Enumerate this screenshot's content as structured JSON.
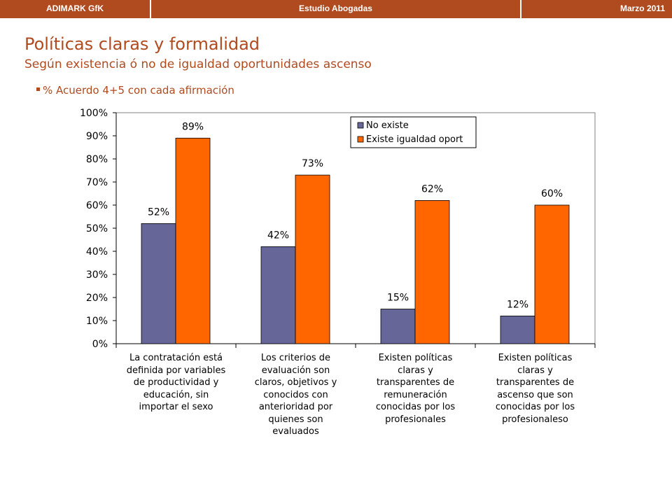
{
  "header": {
    "left": "ADIMARK GfK",
    "center": "Estudio Abogadas",
    "right": "Marzo 2011"
  },
  "title": "Políticas claras y formalidad",
  "subtitle": "Según existencia ó no de igualdad oportunidades ascenso",
  "bullet": "% Acuerdo 4+5 con cada afirmación",
  "colors": {
    "header_bg": "#b04a1f",
    "title": "#b04a1f",
    "series_no_existe": "#666699",
    "series_existe": "#ff6600"
  },
  "chart_data": {
    "type": "bar",
    "categories": [
      "La contratación está definida por variables de productividad y educación, sin importar el sexo",
      "Los criterios de evaluación son claros, objetivos y conocidos con anterioridad por quienes son evaluados",
      "Existen políticas claras y transparentes de remuneración conocidas por los profesionales",
      "Existen políticas claras y transparentes de ascenso que son conocidas por los profesionaleso"
    ],
    "category_lines": [
      [
        "La contratación  está",
        "definida por variables",
        "de productividad y",
        "educación, sin",
        "importar el sexo"
      ],
      [
        "Los criterios de",
        "evaluación  son",
        "claros, objetivos y",
        "conocidos con",
        "anterioridad por",
        "quienes son",
        "evaluados"
      ],
      [
        "Existen políticas",
        "claras y",
        "transparentes de",
        "remuneración",
        "conocidas  por los",
        "profesionales"
      ],
      [
        "Existen políticas",
        "claras y",
        "transparentes de",
        "ascenso que son",
        "conocidas por los",
        "profesionaleso"
      ]
    ],
    "series": [
      {
        "name": "No existe",
        "values": [
          52,
          42,
          15,
          12
        ],
        "labels": [
          "52%",
          "42%",
          "15%",
          "12%"
        ],
        "color": "#666699"
      },
      {
        "name": "Existe igualdad oport",
        "values": [
          89,
          73,
          62,
          60
        ],
        "labels": [
          "89%",
          "73%",
          "62%",
          "60%"
        ],
        "color": "#ff6600"
      }
    ],
    "ylim": [
      0,
      100
    ],
    "yticks": [
      "0%",
      "10%",
      "20%",
      "30%",
      "40%",
      "50%",
      "60%",
      "70%",
      "80%",
      "90%",
      "100%"
    ],
    "legend_position": "top-right",
    "grid": false
  }
}
